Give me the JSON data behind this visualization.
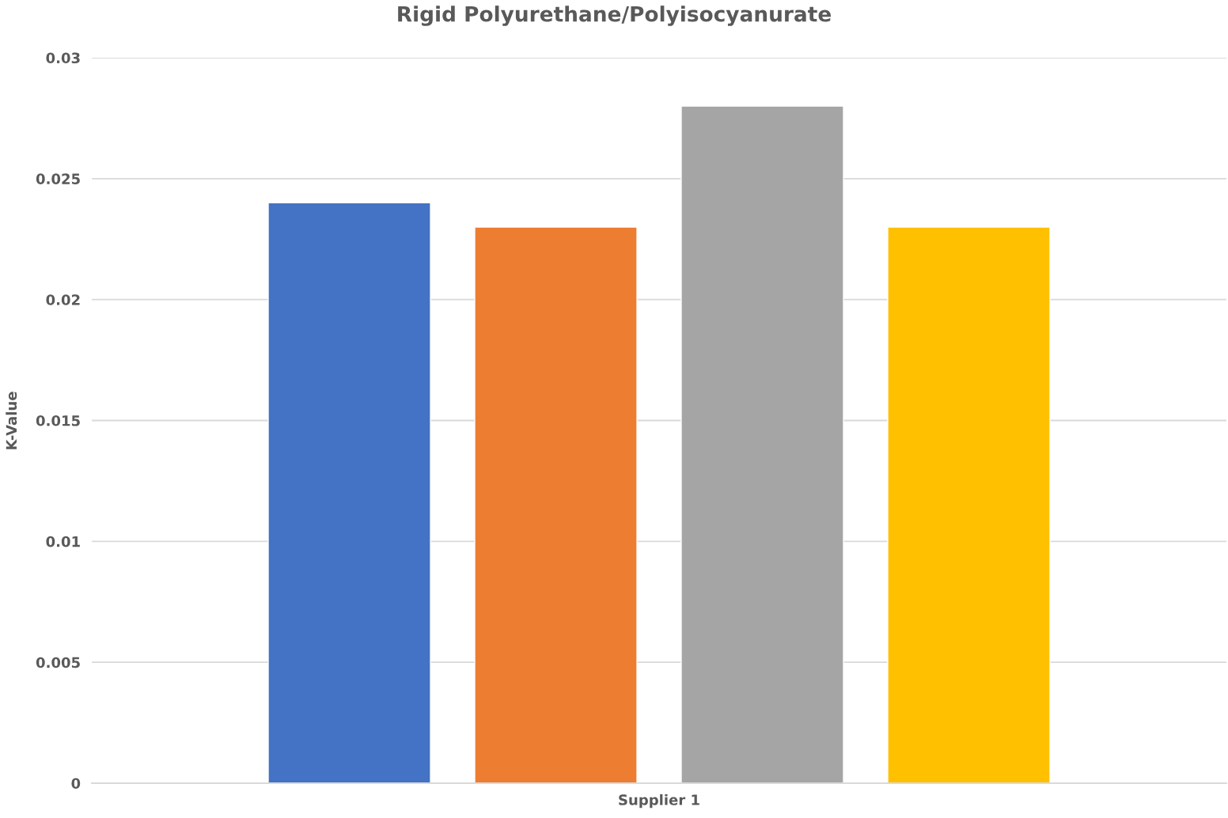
{
  "chart_data": {
    "type": "bar",
    "title": "Rigid Polyurethane/Polyisocyanurate",
    "ylabel": "K-Value",
    "categories": [
      "Supplier 1"
    ],
    "series": [
      {
        "color": "#4472c4",
        "values": [
          0.024
        ]
      },
      {
        "color": "#ed7d31",
        "values": [
          0.023
        ]
      },
      {
        "color": "#a5a5a5",
        "values": [
          0.028
        ]
      },
      {
        "color": "#ffc000",
        "values": [
          0.023
        ]
      }
    ],
    "ylim": [
      0,
      0.03
    ],
    "yticks": [
      0,
      0.005,
      0.01,
      0.015,
      0.02,
      0.025,
      0.03
    ],
    "grid": "y"
  }
}
